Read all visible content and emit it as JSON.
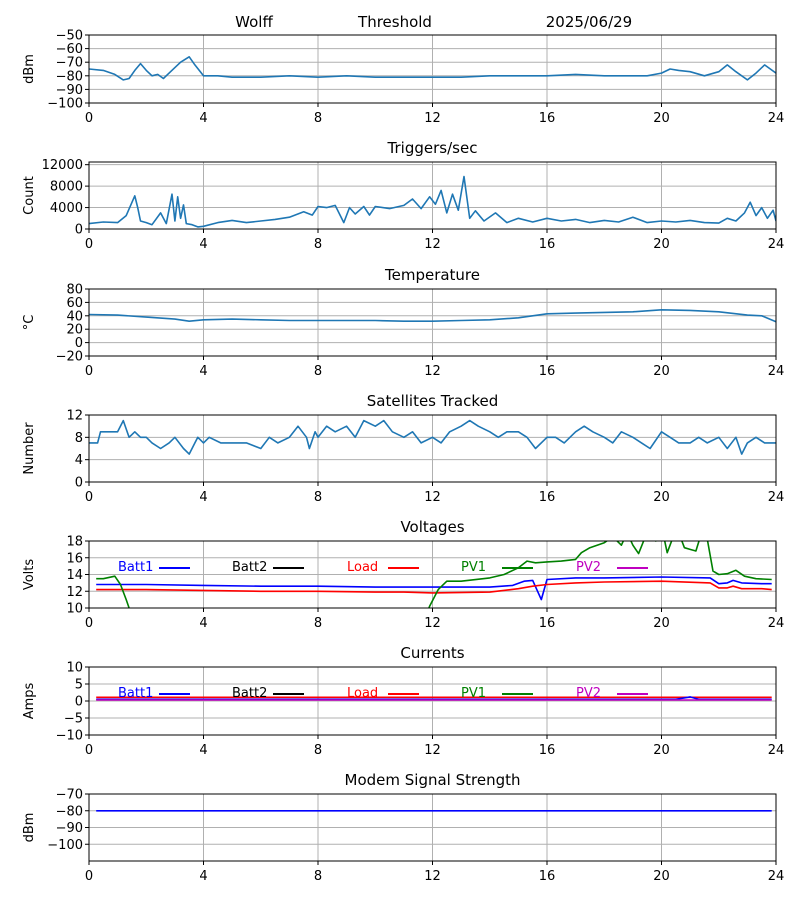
{
  "header": {
    "station": "Wolff",
    "mode": "Threshold",
    "date": "2025/06/29"
  },
  "colors": {
    "default_line": "#1f77b4",
    "Batt1": "#0000ff",
    "Batt2": "#000000",
    "Load": "#ff0000",
    "PV1": "#008000",
    "PV2": "#bf00bf",
    "grid": "#b0b0b0"
  },
  "chart_data": [
    {
      "id": "signal",
      "type": "line",
      "title": "",
      "xlabel": "",
      "ylabel": "dBm",
      "xlim": [
        0,
        24
      ],
      "ylim": [
        -100,
        -50
      ],
      "xticks": [
        0,
        4,
        8,
        12,
        16,
        20,
        24
      ],
      "yticks": [
        -100,
        -90,
        -80,
        -70,
        -60,
        -50
      ],
      "grid": true,
      "series": [
        {
          "color": "#1f77b4",
          "x": [
            0,
            0.5,
            0.9,
            1.2,
            1.4,
            1.6,
            1.8,
            2.0,
            2.2,
            2.4,
            2.6,
            2.8,
            3.0,
            3.2,
            3.5,
            3.7,
            4.0,
            4.5,
            5,
            6,
            7,
            8,
            9,
            10,
            11,
            12,
            13,
            14,
            15,
            16,
            17,
            18,
            19,
            19.5,
            20,
            20.3,
            20.6,
            21,
            21.5,
            22,
            22.3,
            22.6,
            23,
            23.3,
            23.6,
            24
          ],
          "y": [
            -75,
            -76,
            -79,
            -83,
            -82,
            -76,
            -71,
            -76,
            -80,
            -79,
            -82,
            -78,
            -74,
            -70,
            -66,
            -72,
            -80,
            -80,
            -81,
            -81,
            -80,
            -81,
            -80,
            -81,
            -81,
            -81,
            -81,
            -80,
            -80,
            -80,
            -79,
            -80,
            -80,
            -80,
            -78,
            -75,
            -76,
            -77,
            -80,
            -77,
            -72,
            -77,
            -83,
            -78,
            -72,
            -78
          ]
        }
      ]
    },
    {
      "id": "triggers",
      "type": "line",
      "title": "Triggers/sec",
      "xlabel": "",
      "ylabel": "Count",
      "xlim": [
        0,
        24
      ],
      "ylim": [
        0,
        12500
      ],
      "xticks": [
        0,
        4,
        8,
        12,
        16,
        20,
        24
      ],
      "yticks": [
        0,
        4000,
        8000,
        12000
      ],
      "grid": true,
      "series": [
        {
          "color": "#1f77b4",
          "x": [
            0,
            0.5,
            1.0,
            1.3,
            1.6,
            1.7,
            1.8,
            2.0,
            2.2,
            2.5,
            2.7,
            2.9,
            3.0,
            3.1,
            3.2,
            3.3,
            3.4,
            3.6,
            3.8,
            4.0,
            4.5,
            5,
            5.5,
            6,
            6.5,
            7,
            7.5,
            7.8,
            8.0,
            8.3,
            8.6,
            8.9,
            9.1,
            9.3,
            9.6,
            9.8,
            10.0,
            10.5,
            11.0,
            11.3,
            11.6,
            11.9,
            12.1,
            12.3,
            12.5,
            12.7,
            12.9,
            13.1,
            13.3,
            13.5,
            13.8,
            14.2,
            14.6,
            15.0,
            15.5,
            16.0,
            16.5,
            17.0,
            17.5,
            18.0,
            18.5,
            19.0,
            19.5,
            20.0,
            20.5,
            21.0,
            21.5,
            22.0,
            22.3,
            22.6,
            22.9,
            23.1,
            23.3,
            23.5,
            23.7,
            23.9,
            24
          ],
          "y": [
            1000,
            1300,
            1200,
            2500,
            6200,
            4000,
            1500,
            1200,
            800,
            3000,
            1000,
            6500,
            1500,
            6000,
            2000,
            4500,
            1000,
            800,
            400,
            500,
            1200,
            1600,
            1200,
            1500,
            1800,
            2200,
            3200,
            2600,
            4200,
            4000,
            4400,
            1200,
            4000,
            2800,
            4200,
            2600,
            4200,
            3800,
            4400,
            5600,
            3800,
            6000,
            4600,
            7200,
            3000,
            6500,
            3500,
            9800,
            2000,
            3400,
            1500,
            3000,
            1200,
            2000,
            1300,
            2000,
            1500,
            1800,
            1200,
            1600,
            1300,
            2200,
            1200,
            1500,
            1300,
            1600,
            1200,
            1100,
            2000,
            1500,
            3000,
            5000,
            2500,
            4000,
            2000,
            3500,
            1500
          ]
        }
      ]
    },
    {
      "id": "temperature",
      "type": "line",
      "title": "Temperature",
      "xlabel": "",
      "ylabel": "°C",
      "xlim": [
        0,
        24
      ],
      "ylim": [
        -20,
        80
      ],
      "xticks": [
        0,
        4,
        8,
        12,
        16,
        20,
        24
      ],
      "yticks": [
        -20,
        0,
        20,
        40,
        60,
        80
      ],
      "grid": true,
      "series": [
        {
          "color": "#1f77b4",
          "x": [
            0,
            1,
            2,
            3,
            3.5,
            4,
            5,
            6,
            7,
            8,
            9,
            10,
            11,
            12,
            13,
            14,
            15,
            15.5,
            16,
            17,
            18,
            19,
            20,
            21,
            22,
            23,
            23.5,
            24
          ],
          "y": [
            42,
            41,
            38,
            35,
            32,
            34,
            35,
            34,
            33,
            33,
            33,
            33,
            32,
            32,
            33,
            34,
            37,
            40,
            43,
            44,
            45,
            46,
            49,
            48,
            46,
            41,
            40,
            31
          ]
        }
      ]
    },
    {
      "id": "satellites",
      "type": "line",
      "title": "Satellites Tracked",
      "xlabel": "",
      "ylabel": "Number",
      "xlim": [
        0,
        24
      ],
      "ylim": [
        0,
        12
      ],
      "xticks": [
        0,
        4,
        8,
        12,
        16,
        20,
        24
      ],
      "yticks": [
        0,
        4,
        8,
        12
      ],
      "grid": true,
      "series": [
        {
          "color": "#1f77b4",
          "x": [
            0,
            0.3,
            0.4,
            1.0,
            1.2,
            1.4,
            1.6,
            1.8,
            2.0,
            2.2,
            2.5,
            2.8,
            3.0,
            3.3,
            3.5,
            3.7,
            3.8,
            4.0,
            4.2,
            4.6,
            5.0,
            5.5,
            6.0,
            6.3,
            6.6,
            7.0,
            7.3,
            7.6,
            7.7,
            7.9,
            8.0,
            8.3,
            8.6,
            9.0,
            9.3,
            9.6,
            10.0,
            10.3,
            10.6,
            11.0,
            11.3,
            11.6,
            12.0,
            12.3,
            12.6,
            13.0,
            13.3,
            13.6,
            14.0,
            14.3,
            14.6,
            15.0,
            15.3,
            15.6,
            16.0,
            16.3,
            16.6,
            17.0,
            17.3,
            17.6,
            18.0,
            18.3,
            18.6,
            19.0,
            19.3,
            19.6,
            20.0,
            20.3,
            20.6,
            21.0,
            21.3,
            21.6,
            22.0,
            22.3,
            22.6,
            22.8,
            23.0,
            23.3,
            23.6,
            24
          ],
          "y": [
            7,
            7,
            9,
            9,
            11,
            8,
            9,
            8,
            8,
            7,
            6,
            7,
            8,
            6,
            5,
            7,
            8,
            7,
            8,
            7,
            7,
            7,
            6,
            8,
            7,
            8,
            10,
            8,
            6,
            9,
            8,
            10,
            9,
            10,
            8,
            11,
            10,
            11,
            9,
            8,
            9,
            7,
            8,
            7,
            9,
            10,
            11,
            10,
            9,
            8,
            9,
            9,
            8,
            6,
            8,
            8,
            7,
            9,
            10,
            9,
            8,
            7,
            9,
            8,
            7,
            6,
            9,
            8,
            7,
            7,
            8,
            7,
            8,
            6,
            8,
            5,
            7,
            8,
            7,
            7
          ]
        }
      ]
    },
    {
      "id": "voltages",
      "type": "line",
      "title": "Voltages",
      "xlabel": "",
      "ylabel": "Volts",
      "xlim": [
        0,
        24
      ],
      "ylim": [
        10,
        18
      ],
      "xticks": [
        0,
        4,
        8,
        12,
        16,
        20,
        24
      ],
      "yticks": [
        10,
        12,
        14,
        16,
        18
      ],
      "grid": true,
      "legend": [
        "Batt1",
        "Batt2",
        "Load",
        "PV1",
        "PV2"
      ],
      "series": [
        {
          "name": "Batt1",
          "color": "#0000ff",
          "x": [
            0.25,
            2,
            4,
            6,
            8,
            10,
            12,
            14,
            14.8,
            15.2,
            15.5,
            15.8,
            16.0,
            17,
            18,
            20,
            21.7,
            22.0,
            22.3,
            22.5,
            22.8,
            23.5,
            23.85
          ],
          "y": [
            12.8,
            12.8,
            12.7,
            12.6,
            12.6,
            12.5,
            12.5,
            12.5,
            12.7,
            13.2,
            13.3,
            11.0,
            13.4,
            13.6,
            13.6,
            13.7,
            13.6,
            12.9,
            13.0,
            13.3,
            13.0,
            12.9,
            12.9
          ]
        },
        {
          "name": "Load",
          "color": "#ff0000",
          "x": [
            0.25,
            2,
            4,
            6,
            8,
            10,
            11,
            12,
            14,
            15,
            15.5,
            16,
            17,
            18,
            20,
            21.7,
            22.0,
            22.3,
            22.5,
            22.8,
            23.5,
            23.85
          ],
          "y": [
            12.2,
            12.2,
            12.1,
            12.0,
            12.0,
            11.9,
            11.9,
            11.8,
            11.9,
            12.3,
            12.6,
            12.8,
            13.0,
            13.1,
            13.2,
            13.0,
            12.4,
            12.4,
            12.6,
            12.3,
            12.3,
            12.2
          ]
        },
        {
          "name": "PV1",
          "color": "#008000",
          "x": [
            0.25,
            0.5,
            0.9,
            1.1,
            1.3,
            1.4,
            1.42,
            11.85,
            11.9,
            12.2,
            12.5,
            13,
            14,
            14.5,
            15,
            15.3,
            15.6,
            16,
            16.5,
            17,
            17.2,
            17.5,
            18,
            18.3,
            18.6,
            18.8,
            19.0,
            19.2,
            19.4,
            19.6,
            19.8,
            20.0,
            20.2,
            20.4,
            20.6,
            20.8,
            21.0,
            21.2,
            21.4,
            21.6,
            21.8,
            22.0,
            22.3,
            22.6,
            22.9,
            23.3,
            23.85
          ],
          "y": [
            13.5,
            13.5,
            13.8,
            12.8,
            11.0,
            10.0,
            9.8,
            9.8,
            10.2,
            12.2,
            13.2,
            13.2,
            13.6,
            14.0,
            14.8,
            15.6,
            15.4,
            15.5,
            15.6,
            15.8,
            16.6,
            17.2,
            17.8,
            18.5,
            17.5,
            19.0,
            17.5,
            16.5,
            18.2,
            19.2,
            18.0,
            19.8,
            16.6,
            18.4,
            19.0,
            17.2,
            17.0,
            16.8,
            19.0,
            18.2,
            14.4,
            14.0,
            14.1,
            14.5,
            13.8,
            13.5,
            13.4
          ]
        }
      ]
    },
    {
      "id": "currents",
      "type": "line",
      "title": "Currents",
      "xlabel": "",
      "ylabel": "Amps",
      "xlim": [
        0,
        24
      ],
      "ylim": [
        -10,
        10
      ],
      "xticks": [
        0,
        4,
        8,
        12,
        16,
        20,
        24
      ],
      "yticks": [
        -10,
        -5,
        0,
        5,
        10
      ],
      "grid": true,
      "legend": [
        "Batt1",
        "Batt2",
        "Load",
        "PV1",
        "PV2"
      ],
      "series": [
        {
          "name": "Load",
          "color": "#ff0000",
          "x": [
            0.25,
            23.85
          ],
          "y": [
            1.1,
            1.1
          ]
        },
        {
          "name": "Batt1",
          "color": "#0000ff",
          "x": [
            0.25,
            6,
            12,
            18,
            20.5,
            21,
            21.3,
            23.85
          ],
          "y": [
            0.5,
            0.5,
            0.5,
            0.5,
            0.5,
            1.2,
            0.5,
            0.5
          ]
        },
        {
          "name": "PV2",
          "color": "#bf00bf",
          "x": [
            0.25,
            23.85
          ],
          "y": [
            0.3,
            0.3
          ]
        }
      ]
    },
    {
      "id": "modem",
      "type": "line",
      "title": "Modem Signal Strength",
      "xlabel": "",
      "ylabel": "dBm",
      "xlim": [
        0,
        24
      ],
      "ylim": [
        -110,
        -70
      ],
      "xticks": [
        0,
        4,
        8,
        12,
        16,
        20,
        24
      ],
      "yticks": [
        -100,
        -90,
        -80,
        -70
      ],
      "grid": true,
      "series": [
        {
          "color": "#0000ff",
          "x": [
            0.25,
            23.85
          ],
          "y": [
            -80,
            -80
          ]
        }
      ]
    }
  ]
}
